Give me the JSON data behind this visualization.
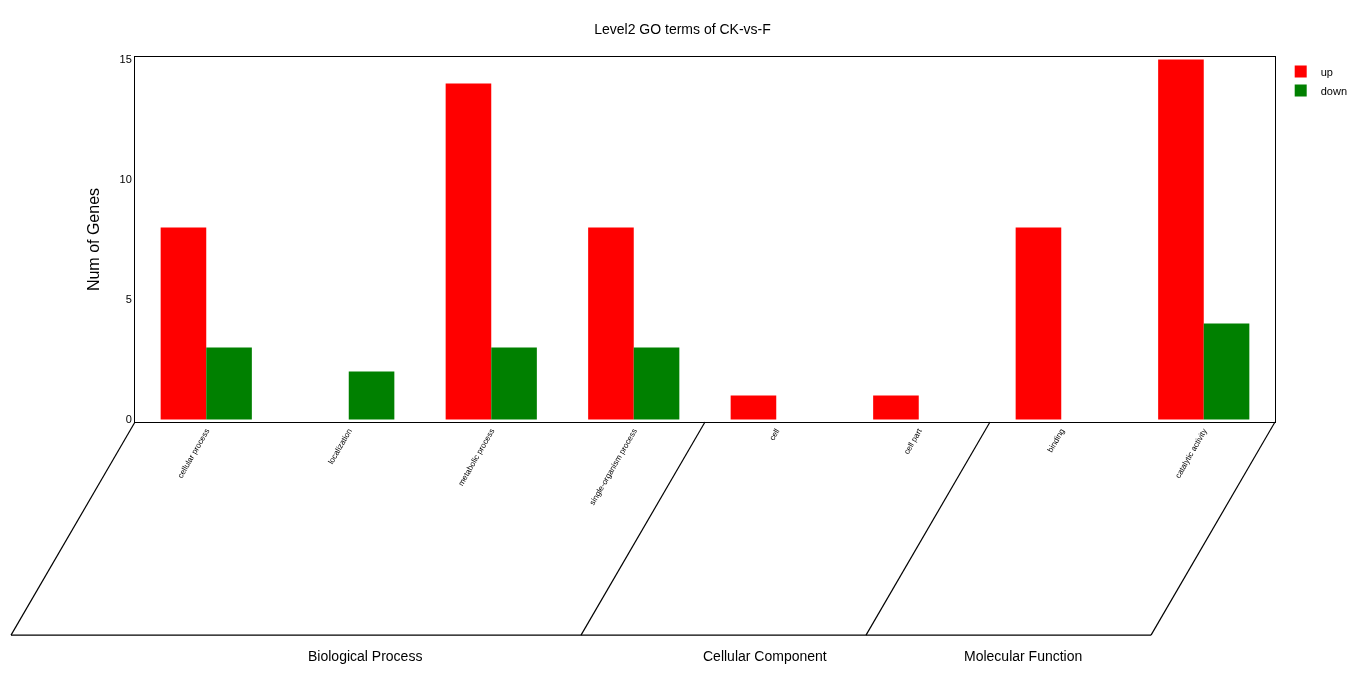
{
  "chart_data": {
    "type": "bar",
    "title": "Level2 GO terms of CK-vs-F",
    "ylabel": "Num of Genes",
    "categories": [
      "cellular process",
      "localization",
      "metabolic process",
      "single-organism process",
      "cell",
      "cell part",
      "binding",
      "catalytic activity"
    ],
    "series": [
      {
        "name": "up",
        "color": "#ff0000",
        "values": [
          8,
          null,
          14,
          8,
          1,
          1,
          8,
          15
        ]
      },
      {
        "name": "down",
        "color": "#008000",
        "values": [
          3,
          2,
          3,
          3,
          null,
          null,
          null,
          4
        ]
      }
    ],
    "ylim": [
      -0.1,
      15.1
    ],
    "yticks": [
      0,
      5,
      10,
      15
    ],
    "legend": "top right",
    "annotations": [
      "Biological Process",
      "Cellular Component",
      "Molecular Function"
    ]
  }
}
